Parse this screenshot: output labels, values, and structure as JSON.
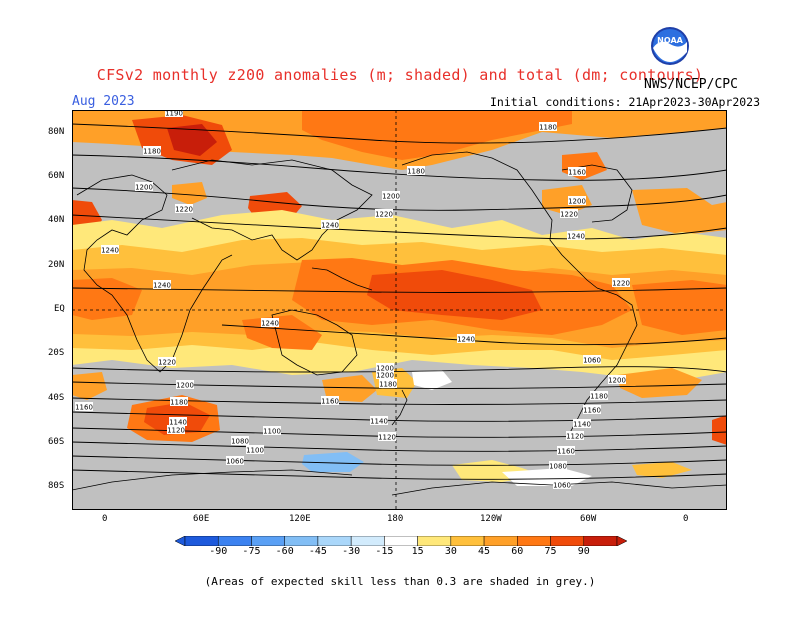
{
  "title": "CFSv2 monthly z200 anomalies (m; shaded) and total (dm; contours)",
  "month": "Aug 2023",
  "source": "NWS/NCEP/CPC",
  "initial_conditions": "Initial conditions: 21Apr2023-30Apr2023",
  "logo_text": "NOAA",
  "footnote": "(Areas of expected skill less than 0.3 are shaded in grey.)",
  "lat_labels": [
    "80N",
    "60N",
    "40N",
    "20N",
    "EQ",
    "20S",
    "40S",
    "60S",
    "80S"
  ],
  "lon_labels": [
    "0",
    "60E",
    "120E",
    "180",
    "120W",
    "60W",
    "0"
  ],
  "colorbar_labels": [
    "-90",
    "-75",
    "-60",
    "-45",
    "-30",
    "-15",
    "15",
    "30",
    "45",
    "60",
    "75",
    "90"
  ],
  "colorbar_colors": [
    "#1e5adc",
    "#3c82f0",
    "#5aa0f5",
    "#82bef5",
    "#aad7fa",
    "#d2ebfc",
    "#ffffff",
    "#ffe87a",
    "#ffc03c",
    "#ffa028",
    "#ff7814",
    "#f04b0a",
    "#c81e0a"
  ],
  "contour_labels": [
    "1190",
    "1180",
    "1180",
    "1200",
    "1220",
    "1240",
    "1240",
    "1180",
    "1200",
    "1220",
    "1240",
    "1160",
    "1200",
    "1220",
    "1240",
    "1240",
    "1240",
    "1220",
    "1200",
    "1200",
    "1180",
    "1160",
    "1140",
    "1120",
    "1100",
    "1080",
    "1060",
    "1180",
    "1160",
    "1140",
    "1120",
    "1100",
    "1080",
    "1060",
    "1200",
    "1220",
    "1240",
    "1240",
    "1220",
    "1200",
    "1180",
    "1160",
    "1140",
    "1120",
    "1180",
    "1160",
    "1140",
    "1120",
    "1080",
    "1060",
    "1180"
  ]
}
